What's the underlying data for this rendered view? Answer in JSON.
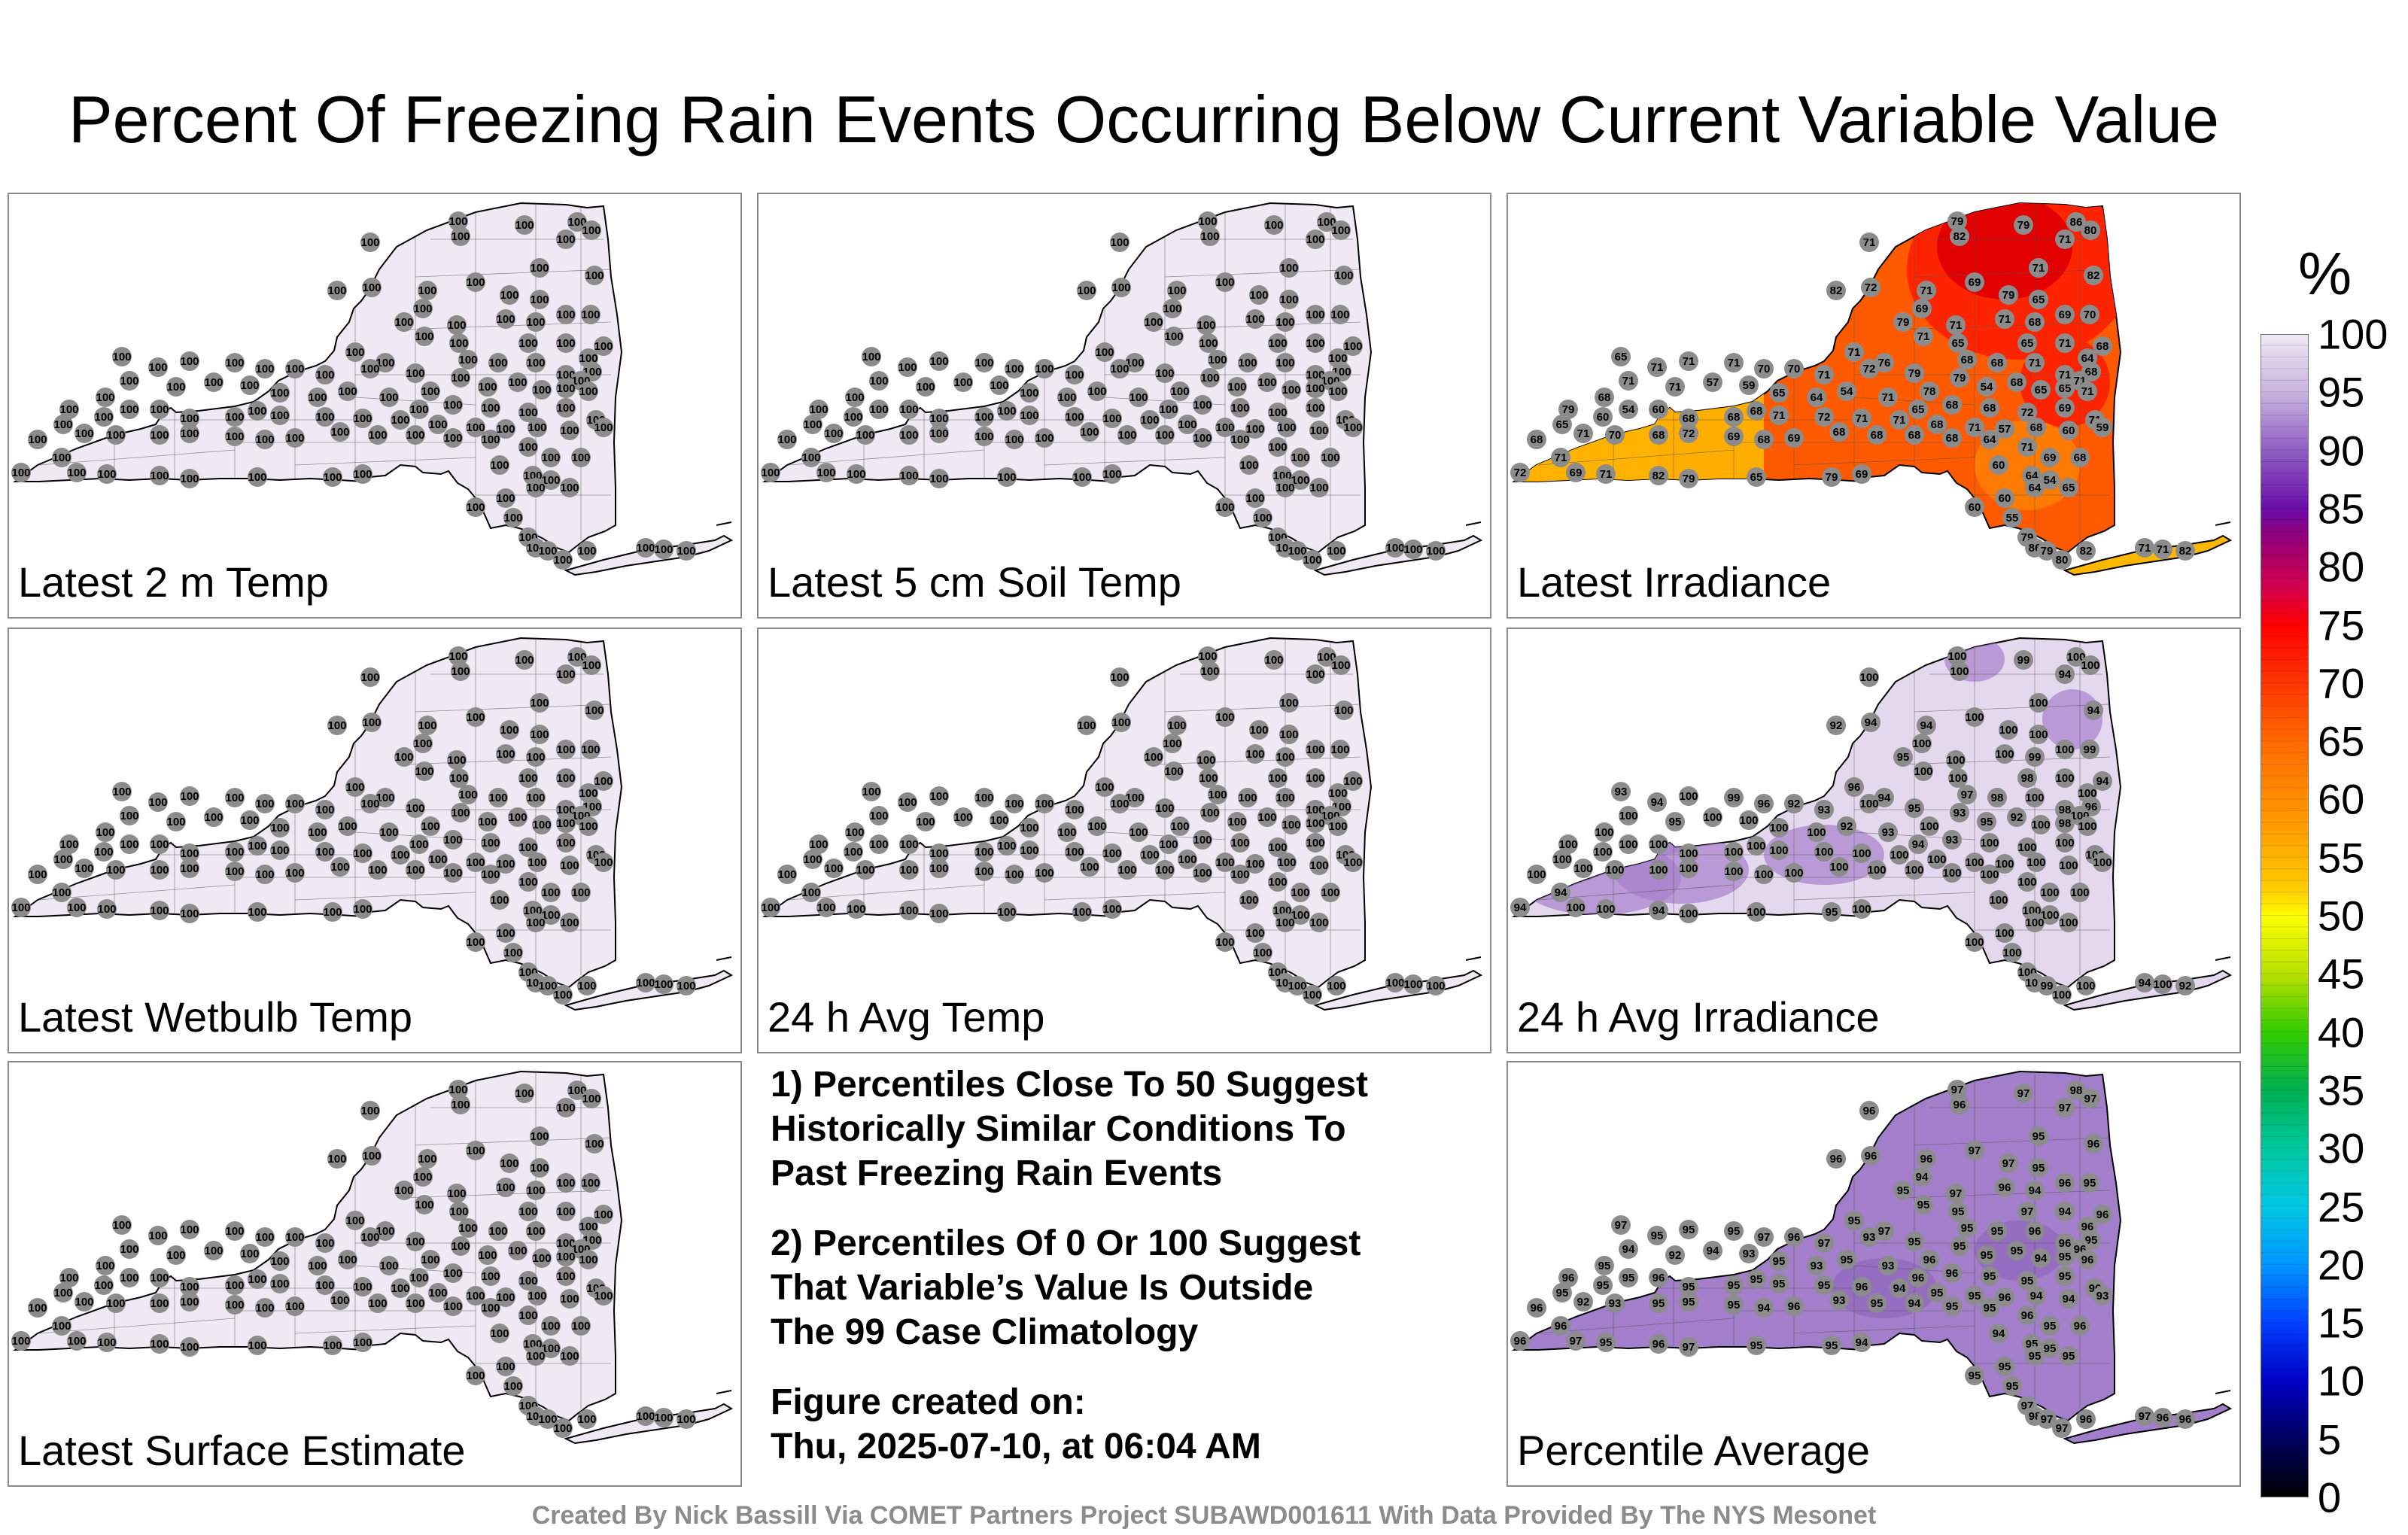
{
  "title": "Percent Of Freezing Rain Events Occurring Below Current Variable Value",
  "panels": [
    {
      "id": "latest-2m-temp",
      "label": "Latest 2 m Temp",
      "mode": "uniform",
      "value": "100",
      "fill": "#efe9f3"
    },
    {
      "id": "latest-5cm-soil-temp",
      "label": "Latest 5 cm Soil Temp",
      "mode": "uniform",
      "value": "100",
      "fill": "#efe9f3"
    },
    {
      "id": "latest-irradiance",
      "label": "Latest Irradiance",
      "mode": "irradiance",
      "fills": {
        "west": "#ffb300",
        "south": "#ff7a00",
        "central": "#ff5a00",
        "north": "#ff2400",
        "northcore": "#e20000",
        "li": "#ffb800"
      },
      "values": [
        "79",
        "86",
        "79",
        "80",
        "82",
        "71",
        "71",
        "82",
        "72",
        "71",
        "69",
        "71",
        "82",
        "79",
        "65",
        "79",
        "69",
        "71",
        "65",
        "71",
        "68",
        "69",
        "70",
        "71",
        "65",
        "71",
        "64",
        "68",
        "68",
        "68",
        "68",
        "71",
        "71",
        "71",
        "71",
        "76",
        "79",
        "78",
        "79",
        "54",
        "68",
        "65",
        "65",
        "71",
        "65",
        "71",
        "71",
        "71",
        "70",
        "70",
        "71",
        "72",
        "71",
        "71",
        "57",
        "59",
        "65",
        "64",
        "54",
        "71",
        "65",
        "68",
        "68",
        "72",
        "69",
        "71",
        "68",
        "79",
        "60",
        "54",
        "60",
        "68",
        "68",
        "68",
        "71",
        "72",
        "71",
        "71",
        "68",
        "71",
        "57",
        "68",
        "60",
        "59",
        "65",
        "68",
        "71",
        "70",
        "68",
        "72",
        "69",
        "68",
        "69",
        "68",
        "68",
        "68",
        "68",
        "64",
        "71",
        "69",
        "68",
        "60",
        "64",
        "54",
        "65",
        "64",
        "60",
        "60",
        "55"
      ]
    },
    {
      "id": "latest-wetbulb-temp",
      "label": "Latest Wetbulb Temp",
      "mode": "uniform",
      "value": "100",
      "fill": "#efe9f3"
    },
    {
      "id": "24h-avg-temp",
      "label": "24 h Avg Temp",
      "mode": "uniform",
      "value": "100",
      "fill": "#efe9f3"
    },
    {
      "id": "24h-avg-irradiance",
      "label": "24 h Avg Irradiance",
      "mode": "blend",
      "fill": "#e4d8ee",
      "accent": "#a67fcc",
      "values": [
        "100",
        "100",
        "99",
        "100",
        "100",
        "94",
        "100",
        "92",
        "94",
        "94",
        "100",
        "100",
        "94",
        "100",
        "100",
        "95",
        "100",
        "100",
        "100",
        "100",
        "99",
        "100",
        "99",
        "100",
        "98",
        "100",
        "100",
        "96",
        "94",
        "97",
        "98",
        "100",
        "98",
        "100",
        "96",
        "94",
        "95",
        "100",
        "93",
        "95",
        "92",
        "100",
        "98",
        "100",
        "93",
        "94",
        "100",
        "99",
        "96",
        "92",
        "93",
        "100",
        "100",
        "95",
        "100",
        "100",
        "100",
        "100",
        "92",
        "93",
        "94",
        "93",
        "100",
        "100",
        "100",
        "100",
        "100",
        "100",
        "100",
        "100",
        "100",
        "100",
        "100",
        "100",
        "100",
        "100",
        "100",
        "100",
        "100",
        "100",
        "100",
        "100",
        "100",
        "100",
        "100",
        "100",
        "100",
        "100",
        "100",
        "100",
        "100",
        "100",
        "100",
        "100",
        "100",
        "100",
        "100",
        "100",
        "100",
        "100",
        "100",
        "100",
        "100",
        "100",
        "100",
        "100",
        "100",
        "100",
        "100"
      ]
    },
    {
      "id": "latest-surface-estimate",
      "label": "Latest Surface Estimate",
      "mode": "uniform",
      "value": "100",
      "fill": "#efe9f3"
    },
    {
      "id": "percentile-average",
      "label": "Percentile Average",
      "mode": "average",
      "fill": "#a37fcb",
      "accent": "#8a5db8",
      "values": [
        "97",
        "98",
        "97",
        "97",
        "96",
        "97",
        "96",
        "96",
        "96",
        "96",
        "97",
        "95",
        "96",
        "97",
        "95",
        "95",
        "94",
        "95",
        "95",
        "96",
        "94",
        "96",
        "95",
        "97",
        "97",
        "94",
        "96",
        "95",
        "96",
        "95",
        "95",
        "96",
        "96",
        "96",
        "95",
        "97",
        "95",
        "96",
        "95",
        "95",
        "95",
        "94",
        "95",
        "96",
        "97",
        "95",
        "95",
        "95",
        "97",
        "96",
        "97",
        "93",
        "94",
        "92",
        "94",
        "93",
        "95",
        "93",
        "95",
        "93",
        "96",
        "96",
        "95",
        "95",
        "95",
        "96",
        "95",
        "96",
        "95",
        "95",
        "96",
        "95",
        "95",
        "95",
        "95",
        "95",
        "96",
        "94",
        "95",
        "95",
        "96",
        "94",
        "94",
        "93",
        "95",
        "96",
        "92",
        "93",
        "95",
        "95",
        "95",
        "94",
        "96",
        "93",
        "95",
        "94",
        "95",
        "95",
        "96",
        "95",
        "96",
        "94",
        "95",
        "95",
        "95",
        "95",
        "95",
        "95",
        "95"
      ]
    }
  ],
  "notes": [
    "1) Percentiles Close To 50 Suggest\nHistorically Similar Conditions To\nPast Freezing Rain Events",
    "2) Percentiles Of 0 Or 100 Suggest\nThat Variable’s Value Is Outside\nThe 99 Case Climatology",
    "Figure created on:\nThu, 2025-07-10, at 06:04 AM"
  ],
  "colorbar": {
    "unit": "%",
    "ticks": [
      "100",
      "95",
      "90",
      "85",
      "80",
      "75",
      "70",
      "65",
      "60",
      "55",
      "50",
      "45",
      "40",
      "35",
      "30",
      "25",
      "20",
      "15",
      "10",
      "5",
      "0"
    ],
    "range": [
      0,
      100
    ]
  },
  "credit": "Created By Nick Bassill Via COMET Partners Project SUBAWD001611 With Data Provided By The NYS Mesonet",
  "colors": {
    "station_dot": "#8c8c8c",
    "panel_border": "#8a8a8a",
    "credit": "#8c8c8c"
  }
}
